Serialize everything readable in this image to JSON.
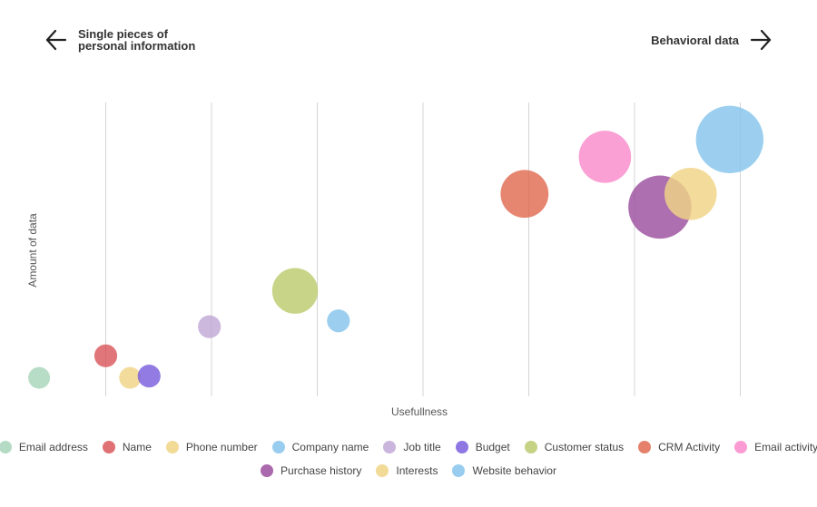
{
  "header": {
    "left_label": "Single pieces of\npersonal information",
    "right_label": "Behavioral data"
  },
  "chart_data": {
    "type": "scatter",
    "subtype": "bubble",
    "title": "",
    "xlabel": "Usefullness",
    "ylabel": "Amount of data",
    "grid": true,
    "legend_position": "bottom",
    "xlim": [
      0,
      8
    ],
    "ylim": [
      0,
      10
    ],
    "x_ticks": [
      1,
      2,
      3,
      4,
      5,
      6,
      7
    ],
    "series": [
      {
        "name": "Email address",
        "color": "#A8D5BA",
        "x": 0.37,
        "y": 0.63,
        "size": 1.0
      },
      {
        "name": "Name",
        "color": "#D9585C",
        "x": 1.0,
        "y": 1.38,
        "size": 1.05
      },
      {
        "name": "Phone number",
        "color": "#F0D485",
        "x": 1.23,
        "y": 0.63,
        "size": 1.0
      },
      {
        "name": "Company name",
        "color": "#86C4EC",
        "x": 3.2,
        "y": 2.57,
        "size": 1.05
      },
      {
        "name": "Job title",
        "color": "#C1A8D6",
        "x": 1.98,
        "y": 2.37,
        "size": 1.05
      },
      {
        "name": "Budget",
        "color": "#7A5FDE",
        "x": 1.41,
        "y": 0.69,
        "size": 1.05
      },
      {
        "name": "Customer status",
        "color": "#BCCA6E",
        "x": 2.79,
        "y": 3.59,
        "size": 2.1
      },
      {
        "name": "CRM Activity",
        "color": "#E06A50",
        "x": 4.96,
        "y": 6.89,
        "size": 2.2
      },
      {
        "name": "Email activity",
        "color": "#F98BCB",
        "x": 5.72,
        "y": 8.15,
        "size": 2.4
      },
      {
        "name": "Purchase history",
        "color": "#9B4F9E",
        "x": 6.24,
        "y": 6.44,
        "size": 2.9
      },
      {
        "name": "Interests",
        "color": "#F0D485",
        "x": 6.53,
        "y": 6.89,
        "size": 2.4
      },
      {
        "name": "Website behavior",
        "color": "#86C4EC",
        "x": 6.9,
        "y": 8.74,
        "size": 3.1
      }
    ]
  }
}
